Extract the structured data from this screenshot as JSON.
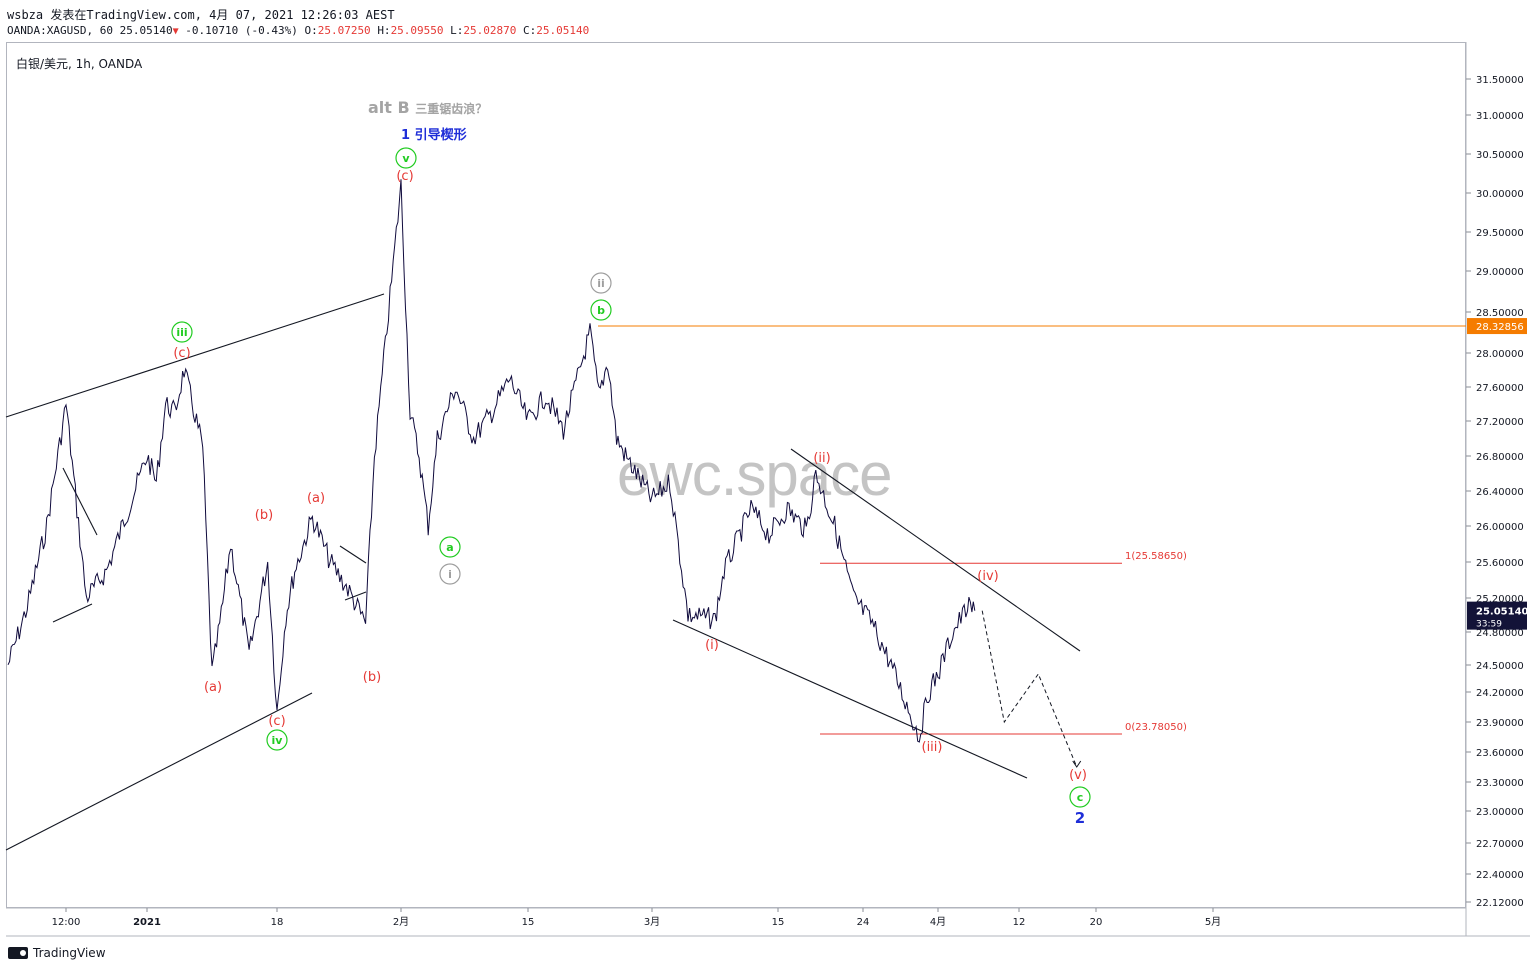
{
  "header": {
    "line1": "wsbza 发表在TradingView.com, 4月 07, 2021 12:26:03 AEST",
    "symbol": "OANDA:XAGUSD, 60",
    "last": "25.05140",
    "change": "-0.10710 (-0.43%)",
    "o_label": "O:",
    "o_value": "25.07250",
    "h_label": "H:",
    "h_value": "25.09550",
    "l_label": "L:",
    "l_value": "25.02870",
    "c_label": "C:",
    "c_value": "25.05140"
  },
  "symbol_label": "白银/美元, 1h, OANDA",
  "watermark": "ewc.space",
  "annotations": {
    "alt_b": "alt B",
    "alt_b_suffix": "三重锯齿浪？",
    "leading_wedge": "1 引导楔形"
  },
  "footer": {
    "brand": "TradingView"
  },
  "colors": {
    "price_line": "#0f0a3c",
    "orange_line": "#f57c00",
    "red_label": "#e53935",
    "green_label": "#22cc22",
    "gray_label": "#9e9e9e",
    "blue_label": "#1f2ed8"
  },
  "chart_data": {
    "type": "line",
    "title": "白银/美元, 1h, OANDA",
    "y_axis_ticks": [
      "31.50000",
      "31.00000",
      "30.50000",
      "30.00000",
      "29.50000",
      "29.00000",
      "28.50000",
      "28.00000",
      "27.60000",
      "27.20000",
      "26.80000",
      "26.40000",
      "26.00000",
      "25.60000",
      "25.20000",
      "24.80000",
      "24.50000",
      "24.20000",
      "23.90000",
      "23.60000",
      "23.30000",
      "23.00000",
      "22.70000",
      "22.40000",
      "22.12000"
    ],
    "x_axis_ticks": [
      "12:00",
      "2021",
      "18",
      "2月",
      "15",
      "3月",
      "15",
      "24",
      "4月",
      "12",
      "20",
      "5月"
    ],
    "ylim": [
      22.12,
      31.5
    ],
    "current_price_label": "25.05140",
    "countdown": "33:59",
    "horizontal_level": {
      "value": 28.32856,
      "label": "28.32856"
    },
    "fib_levels": [
      {
        "label": "1(25.58650)",
        "value": 25.5865
      },
      {
        "label": "0(23.78050)",
        "value": 23.7805
      }
    ],
    "price_path": [
      [
        "12-28",
        24.5
      ],
      [
        "12-29",
        25.1
      ],
      [
        "12-30",
        26.0
      ],
      [
        "12-31",
        27.4
      ],
      [
        "01-01",
        25.2
      ],
      [
        "01-02",
        25.5
      ],
      [
        "01-04",
        26.8
      ],
      [
        "01-05",
        26.5
      ],
      [
        "01-06",
        27.4
      ],
      [
        "01-07",
        27.3
      ],
      [
        "01-08",
        27.8
      ],
      [
        "01-10",
        26.9
      ],
      [
        "01-11",
        24.4
      ],
      [
        "01-12",
        25.0
      ],
      [
        "01-13",
        25.8
      ],
      [
        "01-15",
        24.6
      ],
      [
        "01-17",
        25.6
      ],
      [
        "01-18",
        24.0
      ],
      [
        "01-19",
        25.0
      ],
      [
        "01-20",
        25.5
      ],
      [
        "01-22",
        26.1
      ],
      [
        "01-24",
        25.6
      ],
      [
        "01-26",
        25.3
      ],
      [
        "01-28",
        24.9
      ],
      [
        "01-29",
        26.8
      ],
      [
        "02-01",
        30.1
      ],
      [
        "02-02",
        27.3
      ],
      [
        "02-03",
        26.8
      ],
      [
        "02-04",
        26.0
      ],
      [
        "02-05",
        27.0
      ],
      [
        "02-07",
        27.6
      ],
      [
        "02-09",
        27.0
      ],
      [
        "02-11",
        27.3
      ],
      [
        "02-13",
        27.7
      ],
      [
        "02-15",
        27.2
      ],
      [
        "02-17",
        27.5
      ],
      [
        "02-19",
        27.1
      ],
      [
        "02-22",
        28.25
      ],
      [
        "02-23",
        27.5
      ],
      [
        "02-24",
        27.9
      ],
      [
        "02-25",
        27.0
      ],
      [
        "02-26",
        26.8
      ],
      [
        "03-01",
        26.3
      ],
      [
        "03-03",
        26.5
      ],
      [
        "03-05",
        25.0
      ],
      [
        "03-08",
        24.95
      ],
      [
        "03-09",
        25.5
      ],
      [
        "03-12",
        26.2
      ],
      [
        "03-14",
        25.9
      ],
      [
        "03-16",
        26.2
      ],
      [
        "03-18",
        25.95
      ],
      [
        "03-19",
        26.6
      ],
      [
        "03-21",
        26.0
      ],
      [
        "03-23",
        25.2
      ],
      [
        "03-25",
        24.9
      ],
      [
        "03-27",
        24.5
      ],
      [
        "03-30",
        23.75
      ],
      [
        "03-31",
        24.2
      ],
      [
        "04-01",
        24.4
      ],
      [
        "04-03",
        24.8
      ],
      [
        "04-05",
        25.09
      ],
      [
        "04-06",
        25.05
      ]
    ],
    "projection": [
      [
        "04-07",
        25.05
      ],
      [
        "04-10",
        23.9
      ],
      [
        "04-14",
        24.4
      ],
      [
        "04-18",
        23.45
      ]
    ],
    "wave_labels": [
      {
        "text": "iii",
        "color": "green",
        "circled": true
      },
      {
        "text": "(c)",
        "color": "red",
        "circled": false
      },
      {
        "text": "(a)",
        "color": "red",
        "circled": false
      },
      {
        "text": "(b)",
        "color": "red",
        "circled": false
      },
      {
        "text": "(c)",
        "color": "red",
        "circled": false
      },
      {
        "text": "iv",
        "color": "green",
        "circled": true
      },
      {
        "text": "(a)",
        "color": "red",
        "circled": false
      },
      {
        "text": "(b)",
        "color": "red",
        "circled": false
      },
      {
        "text": "v",
        "color": "green",
        "circled": true
      },
      {
        "text": "(c)",
        "color": "red",
        "circled": false
      },
      {
        "text": "a",
        "color": "green",
        "circled": true
      },
      {
        "text": "i",
        "color": "gray",
        "circled": true
      },
      {
        "text": "ii",
        "color": "gray",
        "circled": true
      },
      {
        "text": "b",
        "color": "green",
        "circled": true
      },
      {
        "text": "(i)",
        "color": "red",
        "circled": false
      },
      {
        "text": "(ii)",
        "color": "red",
        "circled": false
      },
      {
        "text": "(iii)",
        "color": "red",
        "circled": false
      },
      {
        "text": "(iv)",
        "color": "red",
        "circled": false
      },
      {
        "text": "(v)",
        "color": "red",
        "circled": false
      },
      {
        "text": "c",
        "color": "green",
        "circled": true
      },
      {
        "text": "2",
        "color": "blue",
        "circled": false
      }
    ],
    "grid": false,
    "legend": "none"
  }
}
